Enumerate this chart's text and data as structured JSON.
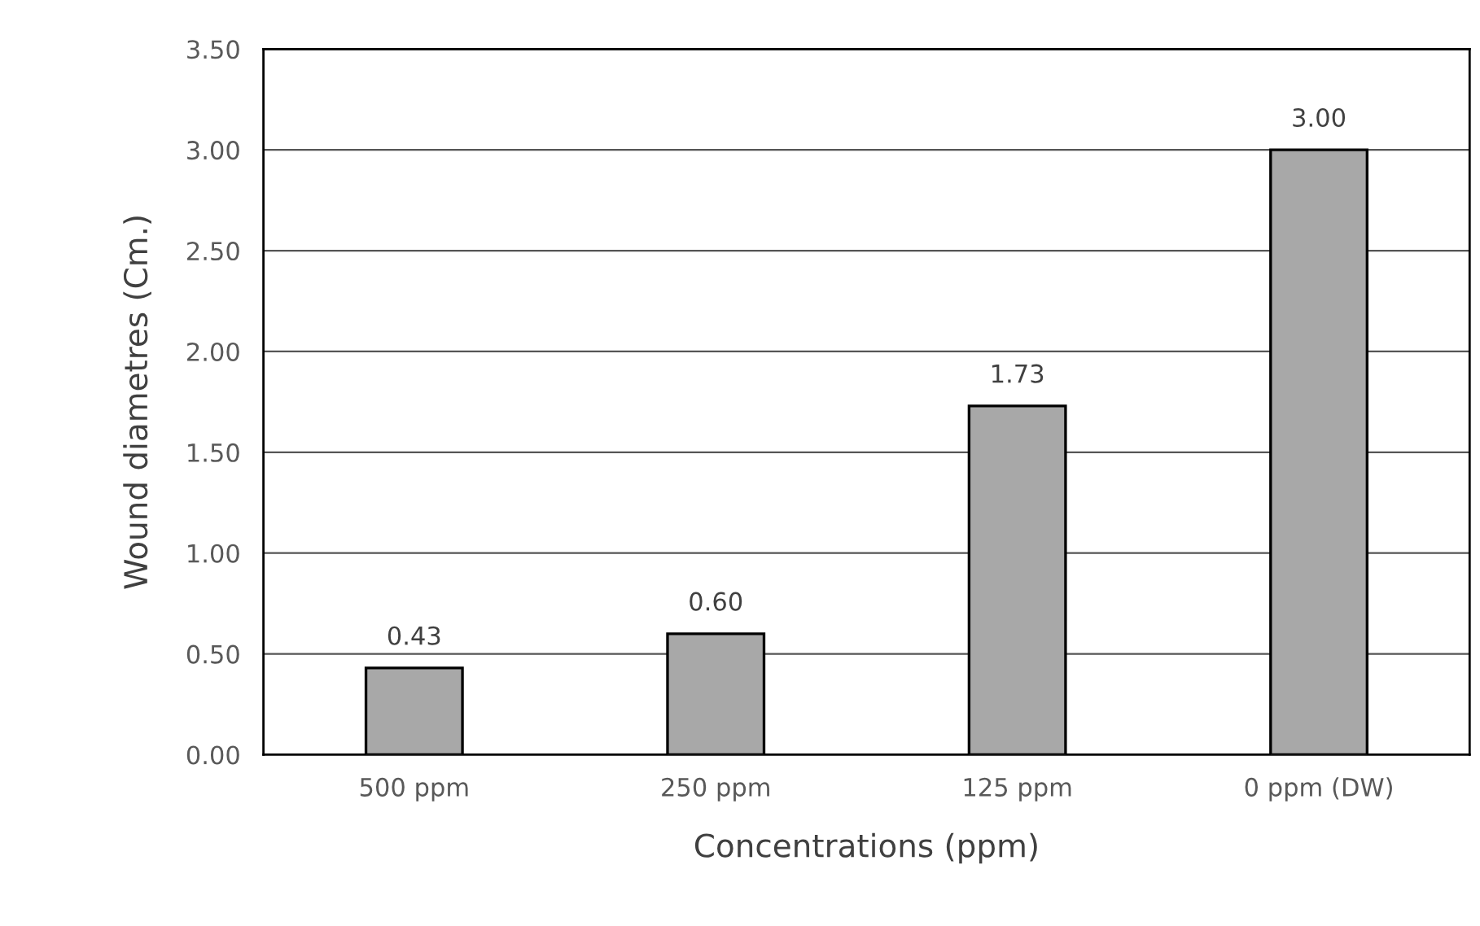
{
  "chart_data": {
    "type": "bar",
    "xlabel": "Concentrations (ppm)",
    "ylabel": "Wound diametres (Cm.)",
    "categories": [
      "500 ppm",
      "250 ppm",
      "125 ppm",
      "0 ppm (DW)"
    ],
    "values": [
      0.43,
      0.6,
      1.73,
      3.0
    ],
    "value_labels": [
      "0.43",
      "0.60",
      "1.73",
      "3.00"
    ],
    "color": "#a8a8a8",
    "ylim": [
      0,
      3.5
    ],
    "yticks": [
      {
        "value": 0,
        "label": "0.00"
      },
      {
        "value": 0.5,
        "label": "0.50"
      },
      {
        "value": 1,
        "label": "1.00"
      },
      {
        "value": 1.5,
        "label": "1.50"
      },
      {
        "value": 2,
        "label": "2.00"
      },
      {
        "value": 2.5,
        "label": "2.50"
      },
      {
        "value": 3,
        "label": "3.00"
      },
      {
        "value": 3.5,
        "label": "3.50"
      }
    ],
    "grid": "y",
    "legend": false
  }
}
